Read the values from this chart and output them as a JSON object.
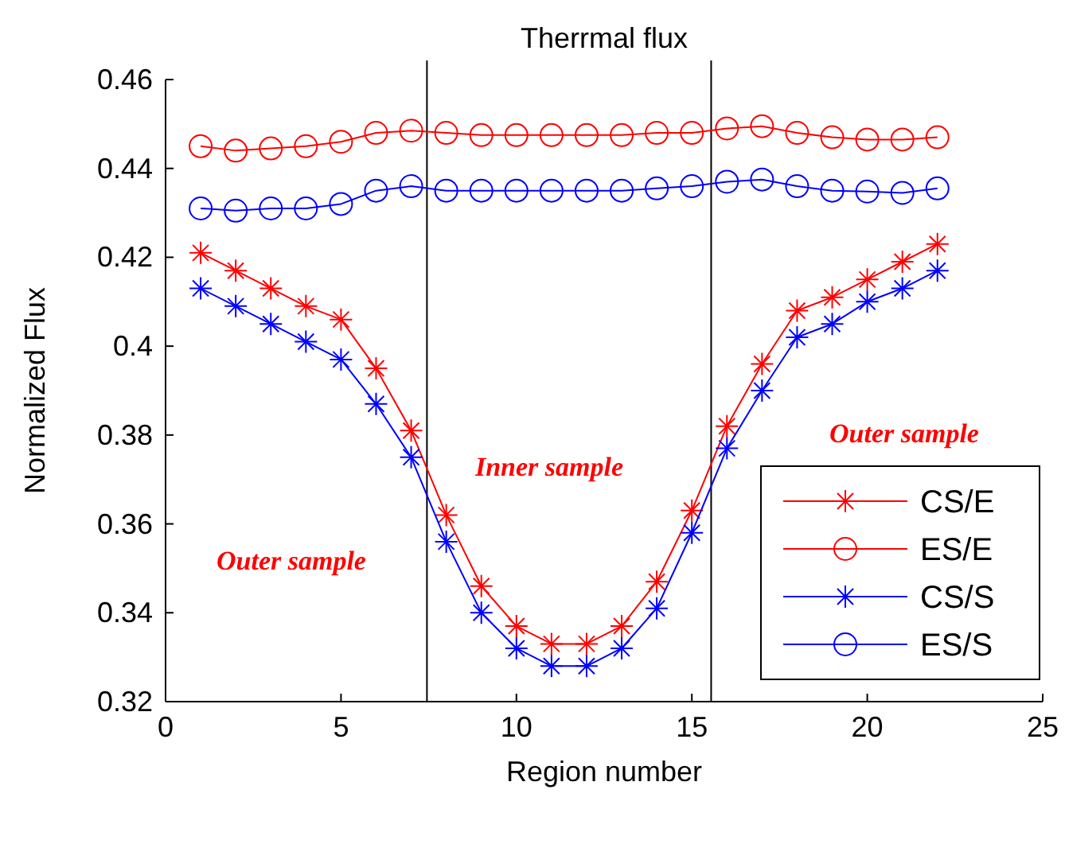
{
  "chart_data": {
    "type": "line",
    "title": "Therrmal flux",
    "xlabel": "Region number",
    "ylabel": "Normalized Flux",
    "x": [
      1,
      2,
      3,
      4,
      5,
      6,
      7,
      8,
      9,
      10,
      11,
      12,
      13,
      14,
      15,
      16,
      17,
      18,
      19,
      20,
      21,
      22
    ],
    "series": [
      {
        "name": "CS/E",
        "color": "#ff0000",
        "marker": "cross",
        "values": [
          0.421,
          0.417,
          0.413,
          0.409,
          0.406,
          0.395,
          0.381,
          0.362,
          0.346,
          0.337,
          0.333,
          0.333,
          0.337,
          0.347,
          0.363,
          0.382,
          0.396,
          0.408,
          0.411,
          0.415,
          0.419,
          0.423
        ]
      },
      {
        "name": "ES/E",
        "color": "#ff0000",
        "marker": "circle",
        "values": [
          0.445,
          0.444,
          0.4445,
          0.445,
          0.446,
          0.448,
          0.4485,
          0.448,
          0.4475,
          0.4475,
          0.4475,
          0.4475,
          0.4475,
          0.448,
          0.448,
          0.449,
          0.4495,
          0.448,
          0.447,
          0.4465,
          0.4465,
          0.447
        ]
      },
      {
        "name": "CS/S",
        "color": "#0000ff",
        "marker": "cross",
        "values": [
          0.413,
          0.409,
          0.405,
          0.401,
          0.397,
          0.387,
          0.375,
          0.356,
          0.34,
          0.332,
          0.328,
          0.328,
          0.332,
          0.341,
          0.358,
          0.377,
          0.39,
          0.402,
          0.405,
          0.41,
          0.413,
          0.417
        ]
      },
      {
        "name": "ES/S",
        "color": "#0000ff",
        "marker": "circle",
        "values": [
          0.431,
          0.4305,
          0.431,
          0.431,
          0.432,
          0.435,
          0.436,
          0.435,
          0.435,
          0.435,
          0.435,
          0.435,
          0.435,
          0.4355,
          0.436,
          0.437,
          0.4375,
          0.436,
          0.435,
          0.4348,
          0.4345,
          0.4355
        ]
      }
    ],
    "xlim": [
      0,
      25
    ],
    "xticks": [
      0,
      5,
      10,
      15,
      20,
      25
    ],
    "ylim": [
      0.32,
      0.46
    ],
    "yticks": [
      {
        "value": 0.32,
        "label": "0.32"
      },
      {
        "value": 0.34,
        "label": "0.34"
      },
      {
        "value": 0.36,
        "label": "0.36"
      },
      {
        "value": 0.38,
        "label": "0.38"
      },
      {
        "value": 0.4,
        "label": "0.4"
      },
      {
        "value": 0.42,
        "label": "0.42"
      },
      {
        "value": 0.44,
        "label": "0.44"
      },
      {
        "value": 0.46,
        "label": "0.46"
      }
    ],
    "ref_lines": [
      {
        "axis": "x",
        "value": 7.45,
        "color": "#000000"
      },
      {
        "axis": "x",
        "value": 15.55,
        "color": "#000000"
      }
    ],
    "annotations": [
      "Outer sample",
      "Inner sample",
      "Outer sample"
    ],
    "grid": false,
    "legend": "bottom right",
    "line_style": "solid"
  }
}
